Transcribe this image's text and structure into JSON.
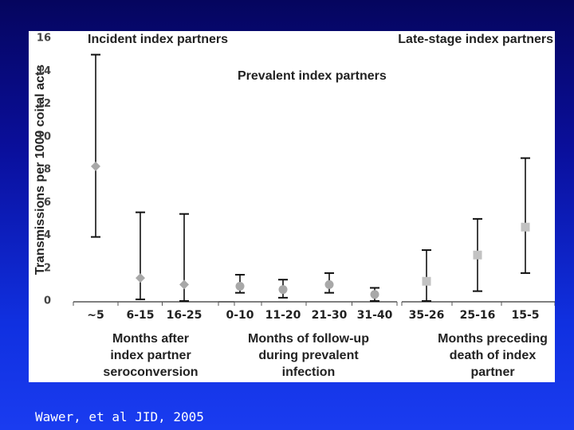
{
  "citation": "Wawer, et al JID, 2005",
  "chart_data": {
    "type": "scatter",
    "ylabel": "Transmissions per 1000 coital acts",
    "ylim": [
      0,
      16
    ],
    "yticks": [
      "0",
      "2",
      "4",
      "6",
      "8",
      "10",
      "12",
      "14",
      "16"
    ],
    "grid": false,
    "panel_titles": [
      "Incident index partners",
      "Prevalent index partners",
      "Late-stage index partners"
    ],
    "groups": [
      {
        "label_lines": [
          "Months after",
          "index partner",
          "seroconversion"
        ],
        "marker": "diamond",
        "color": "#a8a8a8",
        "categories": [
          "~5",
          "6-15",
          "16-25"
        ],
        "values": [
          8.2,
          1.4,
          1.0
        ],
        "lower": [
          3.9,
          0.1,
          0.0
        ],
        "upper": [
          15.0,
          5.4,
          5.3
        ]
      },
      {
        "label_lines": [
          "Months of follow-up",
          "during prevalent",
          "infection"
        ],
        "marker": "circle",
        "color": "#a8a8a8",
        "categories": [
          "0-10",
          "11-20",
          "21-30",
          "31-40"
        ],
        "values": [
          0.9,
          0.7,
          1.0,
          0.4
        ],
        "lower": [
          0.5,
          0.2,
          0.5,
          0.0
        ],
        "upper": [
          1.6,
          1.3,
          1.7,
          0.8
        ]
      },
      {
        "label_lines": [
          "Months preceding",
          "death of index",
          "partner"
        ],
        "marker": "square",
        "color": "#c2c2c2",
        "categories": [
          "35-26",
          "25-16",
          "15-5"
        ],
        "values": [
          1.2,
          2.8,
          4.5
        ],
        "lower": [
          0.0,
          0.6,
          1.7
        ],
        "upper": [
          3.1,
          5.0,
          8.7
        ]
      }
    ]
  }
}
